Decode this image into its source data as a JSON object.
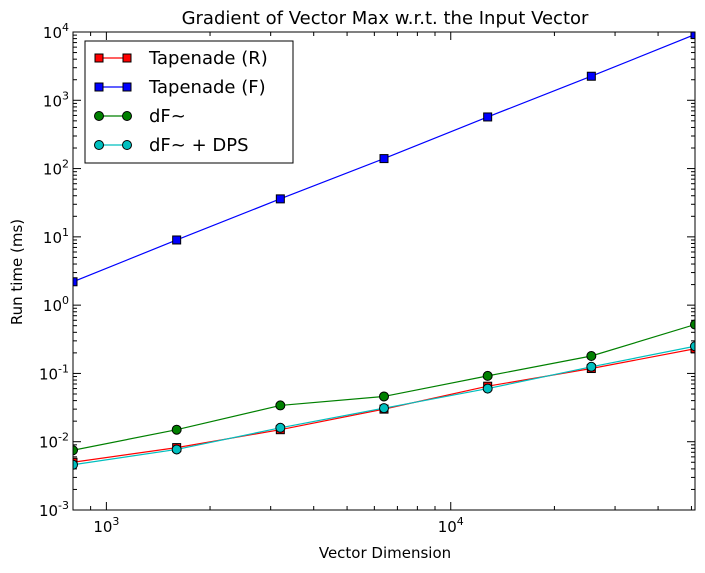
{
  "chart_data": {
    "type": "line",
    "title": "Gradient of Vector Max w.r.t. the Input Vector",
    "xlabel": "Vector Dimension",
    "ylabel": "Run time (ms)",
    "xscale": "log",
    "yscale": "log",
    "xlim": [
      800,
      51200
    ],
    "ylim": [
      0.001,
      10000
    ],
    "xticks": [
      {
        "value": 1000,
        "base": "10",
        "exp": "3"
      },
      {
        "value": 10000,
        "base": "10",
        "exp": "4"
      }
    ],
    "yticks": [
      {
        "value": 0.001,
        "base": "10",
        "exp": "-3"
      },
      {
        "value": 0.01,
        "base": "10",
        "exp": "-2"
      },
      {
        "value": 0.1,
        "base": "10",
        "exp": "-1"
      },
      {
        "value": 1,
        "base": "10",
        "exp": "0"
      },
      {
        "value": 10,
        "base": "10",
        "exp": "1"
      },
      {
        "value": 100,
        "base": "10",
        "exp": "2"
      },
      {
        "value": 1000,
        "base": "10",
        "exp": "3"
      },
      {
        "value": 10000,
        "base": "10",
        "exp": "4"
      }
    ],
    "x": [
      800,
      1600,
      3200,
      6400,
      12800,
      25600,
      51200
    ],
    "series": [
      {
        "name": "Tapenade (R)",
        "color": "#ff0000",
        "marker": "square",
        "values": [
          0.005,
          0.0082,
          0.015,
          0.03,
          0.065,
          0.118,
          0.23
        ]
      },
      {
        "name": "Tapenade (F)",
        "color": "#0000ff",
        "marker": "square",
        "values": [
          2.2,
          9.0,
          36,
          140,
          570,
          2250,
          9200
        ]
      },
      {
        "name": "dF~",
        "color": "#008000",
        "marker": "circle",
        "values": [
          0.0075,
          0.015,
          0.034,
          0.046,
          0.092,
          0.18,
          0.52
        ]
      },
      {
        "name": "dF~ + DPS",
        "color": "#00bfbf",
        "marker": "circle",
        "values": [
          0.0046,
          0.0077,
          0.016,
          0.031,
          0.06,
          0.125,
          0.25
        ]
      }
    ],
    "legend": "top-left",
    "grid": false
  }
}
